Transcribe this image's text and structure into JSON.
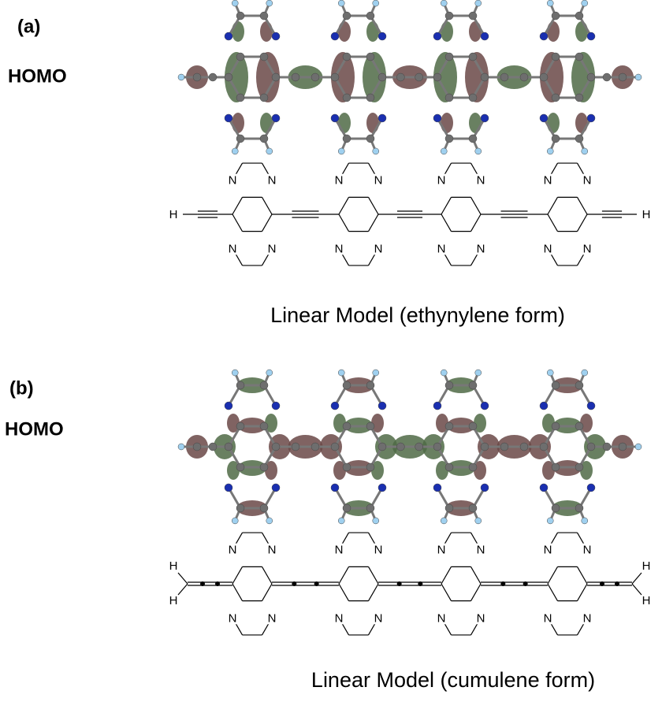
{
  "panels": [
    {
      "label": "(a)",
      "orbital": "HOMO",
      "caption": "Linear Model (ethynylene form)",
      "structure": {
        "end_atoms": [
          "H",
          "H"
        ],
        "ring_atoms": [
          "N",
          "N",
          "N",
          "N",
          "N",
          "N",
          "N",
          "N",
          "N",
          "N",
          "N",
          "N",
          "N",
          "N",
          "N",
          "N"
        ]
      }
    },
    {
      "label": "(b)",
      "orbital": "HOMO",
      "caption": "Linear Model (cumulene form)",
      "structure": {
        "end_atoms": [
          "H",
          "H",
          "H",
          "H"
        ],
        "ring_atoms": [
          "N",
          "N",
          "N",
          "N",
          "N",
          "N",
          "N",
          "N",
          "N",
          "N",
          "N",
          "N",
          "N",
          "N",
          "N",
          "N"
        ]
      }
    }
  ]
}
